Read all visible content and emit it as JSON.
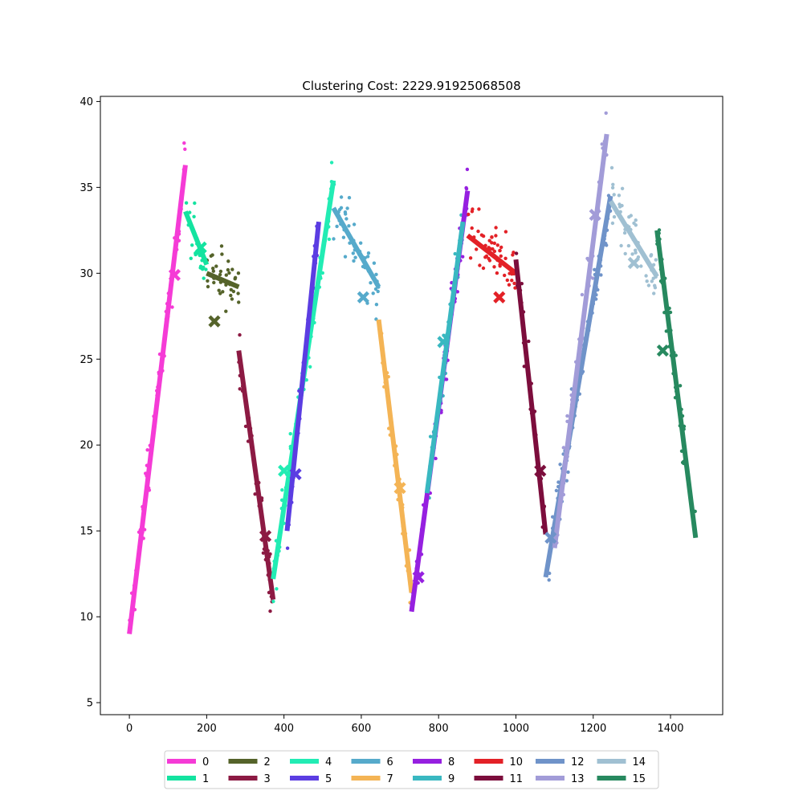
{
  "chart_data": {
    "type": "scatter",
    "title": "Clustering Cost: 2229.91925068508",
    "xlabel": "",
    "ylabel": "",
    "xlim": [
      -75,
      1535
    ],
    "ylim": [
      4.3,
      40.3
    ],
    "x_ticks": [
      0,
      200,
      400,
      600,
      800,
      1000,
      1200,
      1400
    ],
    "y_ticks": [
      5,
      10,
      15,
      20,
      25,
      30,
      35,
      40
    ],
    "grid": false,
    "legend_position": "bottom-center",
    "legend_columns": 8,
    "series": [
      {
        "name": "0",
        "color": "#f53bd6",
        "segment": [
          [
            0,
            9.0
          ],
          [
            145,
            36.3
          ]
        ],
        "centroid": [
          117,
          29.9
        ],
        "x_range": [
          0,
          145
        ]
      },
      {
        "name": "1",
        "color": "#14e3a0",
        "segment": [
          [
            145,
            33.6
          ],
          [
            200,
            30.5
          ]
        ],
        "centroid": [
          185,
          31.5
        ],
        "x_range": [
          145,
          200
        ]
      },
      {
        "name": "2",
        "color": "#55632a",
        "segment": [
          [
            200,
            30.0
          ],
          [
            283,
            29.2
          ]
        ],
        "centroid": [
          220,
          27.2
        ],
        "x_range": [
          200,
          283
        ]
      },
      {
        "name": "3",
        "color": "#8c1a43",
        "segment": [
          [
            283,
            25.5
          ],
          [
            372,
            11.0
          ]
        ],
        "centroid": [
          352,
          14.7
        ],
        "x_range": [
          283,
          372
        ]
      },
      {
        "name": "4",
        "color": "#22ecb4",
        "segment": [
          [
            372,
            12.2
          ],
          [
            528,
            35.4
          ]
        ],
        "centroid": [
          400,
          18.5
        ],
        "x_range": [
          372,
          528
        ]
      },
      {
        "name": "5",
        "color": "#5b3de2",
        "segment": [
          [
            408,
            15.0
          ],
          [
            490,
            33.0
          ]
        ],
        "centroid": [
          430,
          18.3
        ],
        "x_range": [
          408,
          490
        ]
      },
      {
        "name": "6",
        "color": "#56aacb",
        "segment": [
          [
            528,
            33.8
          ],
          [
            645,
            29.2
          ]
        ],
        "centroid": [
          605,
          28.6
        ],
        "x_range": [
          528,
          645
        ]
      },
      {
        "name": "7",
        "color": "#f4b455",
        "segment": [
          [
            645,
            27.3
          ],
          [
            730,
            11.4
          ]
        ],
        "centroid": [
          700,
          17.5
        ],
        "x_range": [
          645,
          730
        ]
      },
      {
        "name": "8",
        "color": "#9620e0",
        "segment": [
          [
            730,
            10.3
          ],
          [
            875,
            34.8
          ]
        ],
        "centroid": [
          748,
          12.3
        ],
        "x_range": [
          730,
          875
        ]
      },
      {
        "name": "9",
        "color": "#39b8c1",
        "segment": [
          [
            770,
            17.2
          ],
          [
            863,
            33.0
          ]
        ],
        "centroid": [
          812,
          26.0
        ],
        "x_range": [
          770,
          863
        ]
      },
      {
        "name": "10",
        "color": "#e32127",
        "segment": [
          [
            875,
            32.2
          ],
          [
            1000,
            30.0
          ]
        ],
        "centroid": [
          957,
          28.6
        ],
        "x_range": [
          875,
          1000
        ]
      },
      {
        "name": "11",
        "color": "#7c0d3c",
        "segment": [
          [
            1000,
            30.8
          ],
          [
            1077,
            14.8
          ]
        ],
        "centroid": [
          1063,
          18.5
        ],
        "x_range": [
          1000,
          1077
        ]
      },
      {
        "name": "12",
        "color": "#6f93c9",
        "segment": [
          [
            1077,
            12.3
          ],
          [
            1245,
            34.5
          ]
        ],
        "centroid": [
          1090,
          14.6
        ],
        "x_range": [
          1077,
          1245
        ]
      },
      {
        "name": "13",
        "color": "#a29cd8",
        "segment": [
          [
            1100,
            14.0
          ],
          [
            1235,
            38.1
          ]
        ],
        "centroid": [
          1205,
          33.4
        ],
        "x_range": [
          1100,
          1235
        ]
      },
      {
        "name": "14",
        "color": "#a0c0d2",
        "segment": [
          [
            1245,
            34.2
          ],
          [
            1365,
            29.8
          ]
        ],
        "centroid": [
          1305,
          30.6
        ],
        "x_range": [
          1245,
          1365
        ]
      },
      {
        "name": "15",
        "color": "#27895f",
        "segment": [
          [
            1365,
            32.5
          ],
          [
            1465,
            14.6
          ]
        ],
        "centroid": [
          1380,
          25.5
        ],
        "x_range": [
          1365,
          1465
        ]
      }
    ]
  }
}
